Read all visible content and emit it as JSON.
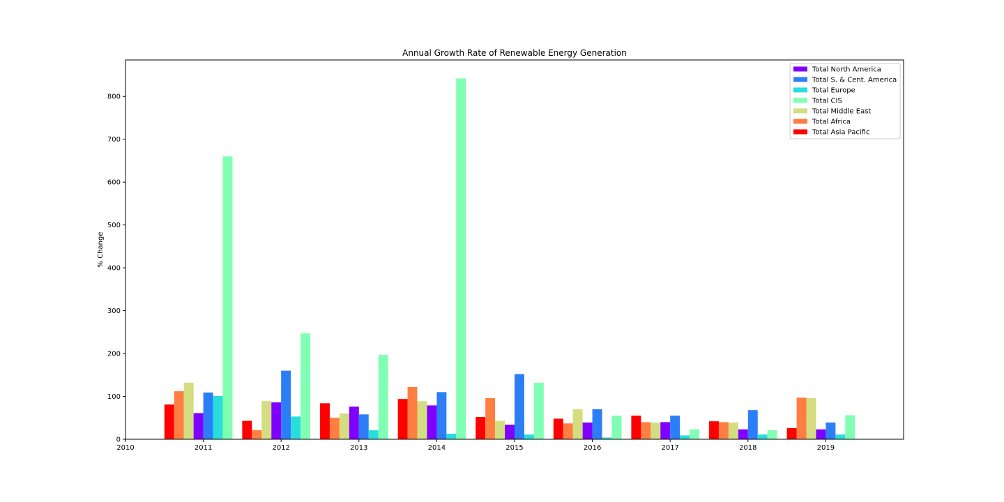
{
  "chart_data": {
    "type": "bar",
    "title": "Annual Growth Rate of Renewable Energy Generation",
    "xlabel": "",
    "ylabel": "% Change",
    "xlim": [
      2010,
      2020
    ],
    "ylim": [
      0,
      885
    ],
    "x_ticks": [
      2010,
      2011,
      2012,
      2013,
      2014,
      2015,
      2016,
      2017,
      2018,
      2019
    ],
    "y_ticks": [
      0,
      100,
      200,
      300,
      400,
      500,
      600,
      700,
      800
    ],
    "grid": false,
    "legend_position": "top-right",
    "group_order": [
      "Total Asia Pacific",
      "Total Africa",
      "Total Middle East",
      "Total North America",
      "Total S. & Cent. America",
      "Total Europe",
      "Total CIS"
    ],
    "x": [
      2011,
      2012,
      2013,
      2014,
      2015,
      2016,
      2017,
      2018,
      2019
    ],
    "series": [
      {
        "name": "Total North America",
        "color": "#8000ff",
        "values": [
          61,
          86,
          76,
          79,
          34,
          39,
          40,
          23,
          23
        ]
      },
      {
        "name": "Total S. & Cent. America",
        "color": "#2c7ef7",
        "values": [
          109,
          160,
          58,
          110,
          152,
          70,
          55,
          68,
          39
        ]
      },
      {
        "name": "Total Europe",
        "color": "#2adddd",
        "values": [
          101,
          53,
          21,
          13,
          11,
          4,
          9,
          11,
          11
        ]
      },
      {
        "name": "Total CIS",
        "color": "#80ffb4",
        "values": [
          660,
          247,
          197,
          842,
          132,
          55,
          23,
          21,
          56
        ]
      },
      {
        "name": "Total Middle East",
        "color": "#d4dd80",
        "values": [
          132,
          89,
          60,
          89,
          43,
          70,
          39,
          39,
          96
        ]
      },
      {
        "name": "Total Africa",
        "color": "#ff7e41",
        "values": [
          112,
          21,
          50,
          122,
          96,
          37,
          40,
          40,
          97
        ]
      },
      {
        "name": "Total Asia Pacific",
        "color": "#ff0000",
        "values": [
          81,
          43,
          84,
          94,
          52,
          48,
          55,
          42,
          26
        ]
      }
    ]
  }
}
